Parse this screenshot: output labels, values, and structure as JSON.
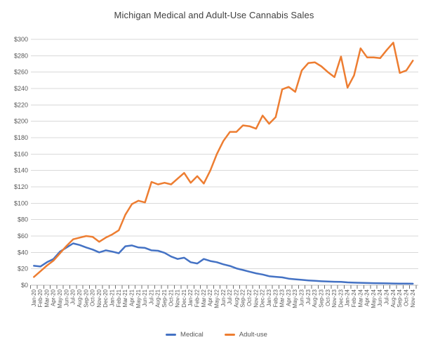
{
  "title": "Michigan Medical and Adult-Use Cannabis Sales",
  "chart_data": {
    "type": "line",
    "title": "Michigan Medical and Adult-Use Cannabis Sales",
    "xlabel": "",
    "ylabel": "",
    "ylim": [
      0,
      300
    ],
    "y_tick_step": 20,
    "y_tick_labels": [
      "$0",
      "$20",
      "$40",
      "$60",
      "$80",
      "$100",
      "$120",
      "$140",
      "$160",
      "$180",
      "$200",
      "$220",
      "$240",
      "$260",
      "$280",
      "$300"
    ],
    "grid": true,
    "legend_position": "bottom-center",
    "x": [
      "Jan-20",
      "Feb-20",
      "Mar-20",
      "Apr-20",
      "May-20",
      "Jun-20",
      "Jul-20",
      "Aug-20",
      "Sep-20",
      "Oct-20",
      "Nov-20",
      "Dec-20",
      "Jan-21",
      "Feb-21",
      "Mar-21",
      "Apr-21",
      "May-21",
      "Jun-21",
      "Jul-21",
      "Aug-21",
      "Sep-21",
      "Oct-21",
      "Nov-21",
      "Dec-21",
      "Jan-22",
      "Feb-22",
      "Mar-22",
      "Apr-22",
      "May-22",
      "Jun-22",
      "Jul-22",
      "Aug-22",
      "Sep-22",
      "Oct-22",
      "Nov-22",
      "Dec-22",
      "Jan-23",
      "Feb-23",
      "Mar-23",
      "Apr-23",
      "May-23",
      "Jun-23",
      "Jul-23",
      "Aug-23",
      "Sep-23",
      "Oct-23",
      "Nov-23",
      "Dec-23",
      "Jan-24",
      "Feb-24",
      "Mar-24",
      "Apr-24",
      "May-24",
      "Jun-24",
      "Jul-24",
      "Aug-24",
      "Sep-24",
      "Oct-24",
      "Nov-24"
    ],
    "series": [
      {
        "name": "Medical",
        "color": "#4472C4",
        "values": [
          23.7,
          22.8,
          28,
          32,
          41,
          46,
          51,
          49,
          46,
          43.5,
          40,
          42.5,
          41,
          39,
          47.5,
          48.5,
          46,
          45.5,
          42.5,
          42,
          39.5,
          35,
          32,
          33.5,
          28,
          26.5,
          32,
          29.5,
          28,
          25.5,
          23.5,
          20.5,
          18.5,
          16.5,
          14.5,
          13,
          11,
          10.2,
          9.5,
          8,
          7.2,
          6.5,
          5.8,
          5.3,
          4.8,
          4.5,
          4.2,
          4,
          3.4,
          3.1,
          2.9,
          2.7,
          2.5,
          2.3,
          2.2,
          2.1,
          2,
          1.9,
          1.8
        ]
      },
      {
        "name": "Adult-use",
        "color": "#ED7D31",
        "values": [
          10,
          17,
          24,
          30,
          39,
          48,
          56,
          58,
          60,
          59,
          53,
          58,
          62,
          67,
          86,
          99,
          103,
          101,
          126,
          123,
          125,
          123,
          130,
          137,
          125,
          133,
          124,
          140,
          160,
          176,
          187,
          187,
          195,
          194,
          191,
          207,
          197,
          205,
          239,
          242,
          236,
          262,
          271,
          272,
          267,
          260,
          254,
          279,
          241,
          256,
          289,
          278,
          278,
          277,
          287,
          296,
          259,
          262,
          274
        ]
      }
    ]
  }
}
